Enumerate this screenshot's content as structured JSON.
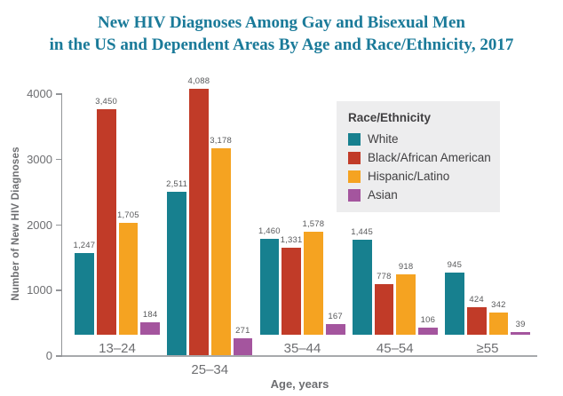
{
  "title": {
    "line1": "New HIV Diagnoses Among Gay and Bisexual Men",
    "line2": "in the US and Dependent Areas By Age and Race/Ethnicity, 2017"
  },
  "chart_data": {
    "type": "bar",
    "title": "New HIV Diagnoses Among Gay and Bisexual Men in the US and Dependent Areas By Age and Race/Ethnicity, 2017",
    "categories": [
      "13–24",
      "25–34",
      "35–44",
      "45–54",
      "≥55"
    ],
    "series": [
      {
        "name": "White",
        "color": "#17808F",
        "values": [
          1247,
          2511,
          1460,
          1445,
          945
        ]
      },
      {
        "name": "Black/African American",
        "color": "#C13B28",
        "values": [
          3450,
          4088,
          1331,
          778,
          424
        ]
      },
      {
        "name": "Hispanic/Latino",
        "color": "#F5A321",
        "values": [
          1705,
          3178,
          1578,
          918,
          342
        ]
      },
      {
        "name": "Asian",
        "color": "#A4559E",
        "values": [
          184,
          271,
          167,
          106,
          39
        ]
      }
    ],
    "xlabel": "Age, years",
    "ylabel": "Number of New HIV Diagnoses",
    "ylim": [
      0,
      4000
    ],
    "yticks": [
      0,
      1000,
      2000,
      3000,
      4000
    ],
    "grid": false,
    "legend_title": "Race/Ethnicity",
    "legend_position": "top-right",
    "bar_value_labels": true
  },
  "colors": {
    "title_text": "#1A7A99",
    "axis_text": "#6D6E71",
    "value_label_text": "#58595B",
    "axis_line": "#939598",
    "baseline": "#A7A9AC",
    "legend_background": "#EDEDEE",
    "legend_text": "#414042",
    "background": "#FFFFFF"
  }
}
